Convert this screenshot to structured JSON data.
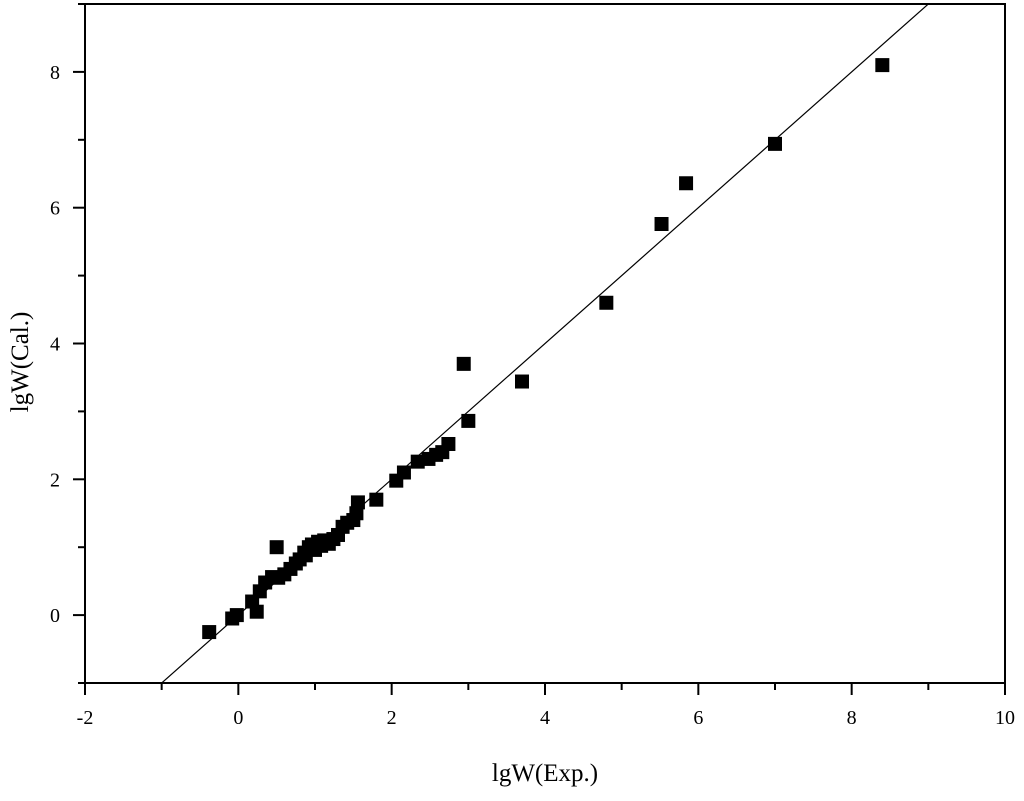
{
  "chart_data": {
    "type": "scatter",
    "title": "",
    "xlabel": "lgW(Exp.)",
    "ylabel": "lgW(Cal.)",
    "xlim": [
      -2,
      10
    ],
    "ylim": [
      -1,
      9
    ],
    "x_ticks": [
      -2,
      0,
      2,
      4,
      6,
      8,
      10
    ],
    "y_ticks": [
      0,
      2,
      4,
      6,
      8
    ],
    "x_tick_labels": [
      "-2",
      "0",
      "2",
      "4",
      "6",
      "8",
      "10"
    ],
    "y_tick_labels": [
      "0",
      "2",
      "4",
      "6",
      "8"
    ],
    "grid": false,
    "legend": "none",
    "marker": "square",
    "marker_color": "#000000",
    "series": [
      {
        "points": [
          [
            -0.38,
            -0.25
          ],
          [
            -0.08,
            -0.05
          ],
          [
            -0.02,
            0.0
          ],
          [
            0.18,
            0.2
          ],
          [
            0.24,
            0.05
          ],
          [
            0.28,
            0.35
          ],
          [
            0.35,
            0.48
          ],
          [
            0.44,
            0.56
          ],
          [
            0.5,
            1.0
          ],
          [
            0.52,
            0.55
          ],
          [
            0.6,
            0.6
          ],
          [
            0.68,
            0.68
          ],
          [
            0.75,
            0.76
          ],
          [
            0.8,
            0.82
          ],
          [
            0.86,
            0.92
          ],
          [
            0.88,
            0.88
          ],
          [
            0.92,
            1.0
          ],
          [
            0.96,
            1.04
          ],
          [
            1.0,
            0.96
          ],
          [
            1.04,
            1.08
          ],
          [
            1.08,
            1.02
          ],
          [
            1.12,
            1.1
          ],
          [
            1.18,
            1.05
          ],
          [
            1.24,
            1.12
          ],
          [
            1.3,
            1.18
          ],
          [
            1.36,
            1.3
          ],
          [
            1.42,
            1.36
          ],
          [
            1.5,
            1.4
          ],
          [
            1.54,
            1.5
          ],
          [
            1.56,
            1.66
          ],
          [
            1.8,
            1.7
          ],
          [
            2.06,
            1.98
          ],
          [
            2.16,
            2.1
          ],
          [
            2.34,
            2.26
          ],
          [
            2.48,
            2.3
          ],
          [
            2.58,
            2.36
          ],
          [
            2.66,
            2.4
          ],
          [
            2.74,
            2.52
          ],
          [
            2.94,
            3.7
          ],
          [
            3.0,
            2.86
          ],
          [
            3.7,
            3.44
          ],
          [
            4.8,
            4.6
          ],
          [
            5.52,
            5.76
          ],
          [
            5.84,
            6.36
          ],
          [
            7.0,
            6.94
          ],
          [
            8.4,
            8.1
          ]
        ]
      }
    ],
    "fit_line": {
      "slope": 1,
      "intercept": 0
    }
  }
}
